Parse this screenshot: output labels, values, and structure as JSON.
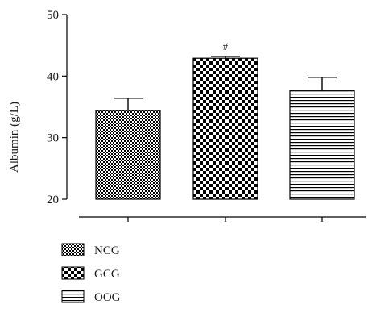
{
  "chart_data": {
    "type": "bar",
    "title": "",
    "xlabel": "",
    "ylabel": "Albumin (g/L)",
    "ylim": [
      20,
      50
    ],
    "yticks": [
      20,
      30,
      40,
      50
    ],
    "grid": false,
    "legend_placement": "bottom-left",
    "categories": [
      "NCG",
      "GCG",
      "OOG"
    ],
    "values": [
      34.4,
      42.9,
      37.6
    ],
    "error_upper": [
      36.4,
      43.2,
      39.8
    ],
    "annotations": [
      {
        "category": "GCG",
        "text": "#"
      }
    ],
    "fill_patterns": [
      "fine-checker",
      "coarse-checker",
      "horizontal-stripes"
    ],
    "colors": {
      "fill": "#000000",
      "background": "#ffffff",
      "axis": "#000000"
    }
  }
}
